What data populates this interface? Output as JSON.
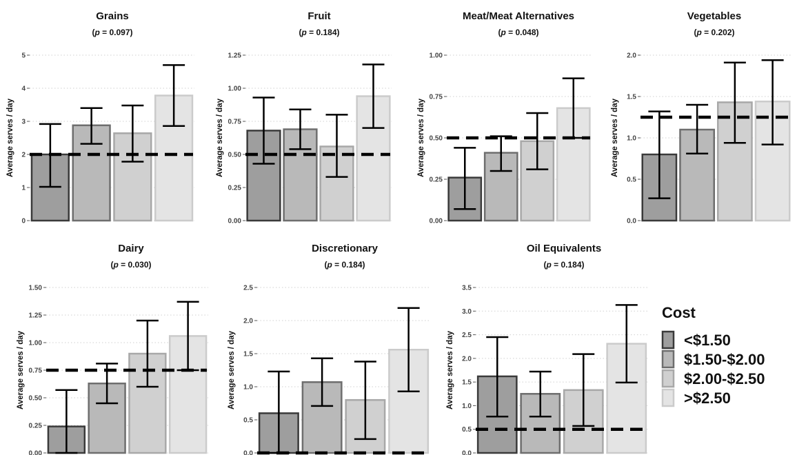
{
  "chart_data": {
    "type": "bar",
    "legend": {
      "title": "Cost",
      "placement": "right",
      "items": [
        {
          "label": "<$1.50",
          "color": "#9e9e9e",
          "stroke": "#3a3a3a"
        },
        {
          "label": "$1.50-$2.00",
          "color": "#b9b9b9",
          "stroke": "#6e6e6e"
        },
        {
          "label": "$2.00-$2.50",
          "color": "#d0d0d0",
          "stroke": "#a8a8a8"
        },
        {
          "label": ">$2.50",
          "color": "#e4e4e4",
          "stroke": "#cbcbcb"
        }
      ]
    },
    "grid": "horizontal dotted",
    "panels": [
      {
        "title": "Grains",
        "p_value": "0.097",
        "ylabel": "Average serves / day",
        "ylim": [
          0,
          5
        ],
        "ticks": [
          0,
          1,
          2,
          3,
          4,
          5
        ],
        "tick_labels": [
          "0",
          "1",
          "2",
          "3",
          "4",
          "5"
        ],
        "values": [
          2.0,
          2.88,
          2.64,
          3.78
        ],
        "err_low": [
          1.02,
          2.32,
          1.78,
          2.86
        ],
        "err_high": [
          2.92,
          3.4,
          3.48,
          4.7
        ],
        "reference": 2.0
      },
      {
        "title": "Fruit",
        "p_value": "0.184",
        "ylabel": "Average serves / day",
        "ylim": [
          0,
          1.25
        ],
        "ticks": [
          0,
          0.25,
          0.5,
          0.75,
          1.0,
          1.25
        ],
        "tick_labels": [
          "0.00",
          "0.25",
          "0.50",
          "0.75",
          "1.00",
          "1.25"
        ],
        "values": [
          0.68,
          0.69,
          0.56,
          0.94
        ],
        "err_low": [
          0.43,
          0.54,
          0.33,
          0.7
        ],
        "err_high": [
          0.93,
          0.84,
          0.8,
          1.18
        ],
        "reference": 0.5
      },
      {
        "title": "Meat/Meat Alternatives",
        "p_value": "0.048",
        "ylabel": "Average serves / day",
        "ylim": [
          0,
          1.0
        ],
        "ticks": [
          0,
          0.25,
          0.5,
          0.75,
          1.0
        ],
        "tick_labels": [
          "0.00",
          "0.25",
          "0.50",
          "0.75",
          "1.00"
        ],
        "values": [
          0.26,
          0.41,
          0.48,
          0.68
        ],
        "err_low": [
          0.07,
          0.3,
          0.31,
          0.5
        ],
        "err_high": [
          0.44,
          0.51,
          0.65,
          0.86
        ],
        "reference": 0.5
      },
      {
        "title": "Vegetables",
        "p_value": "0.202",
        "ylabel": "Average serves / day",
        "ylim": [
          0,
          2.0
        ],
        "ticks": [
          0,
          0.5,
          1.0,
          1.5,
          2.0
        ],
        "tick_labels": [
          "0.0",
          "0.5",
          "1.0",
          "1.5",
          "2.0"
        ],
        "values": [
          0.8,
          1.1,
          1.43,
          1.44
        ],
        "err_low": [
          0.27,
          0.81,
          0.94,
          0.92
        ],
        "err_high": [
          1.32,
          1.4,
          1.91,
          1.94
        ],
        "reference": 1.25
      },
      {
        "title": "Dairy",
        "p_value": "0.030",
        "ylabel": "Average serves / day",
        "ylim": [
          0,
          1.5
        ],
        "ticks": [
          0,
          0.25,
          0.5,
          0.75,
          1.0,
          1.25,
          1.5
        ],
        "tick_labels": [
          "0.00",
          "0.25",
          "0.50",
          "0.75",
          "1.00",
          "1.25",
          "1.50"
        ],
        "values": [
          0.24,
          0.63,
          0.9,
          1.06
        ],
        "err_low": [
          0.0,
          0.45,
          0.6,
          0.75
        ],
        "err_high": [
          0.57,
          0.81,
          1.2,
          1.37
        ],
        "reference": 0.75
      },
      {
        "title": "Discretionary",
        "p_value": "0.184",
        "ylabel": "Average serves / day",
        "ylim": [
          0,
          2.5
        ],
        "ticks": [
          0,
          0.5,
          1.0,
          1.5,
          2.0,
          2.5
        ],
        "tick_labels": [
          "0.0",
          "0.5",
          "1.0",
          "1.5",
          "2.0",
          "2.5"
        ],
        "values": [
          0.6,
          1.07,
          0.8,
          1.56
        ],
        "err_low": [
          0.0,
          0.71,
          0.21,
          0.93
        ],
        "err_high": [
          1.23,
          1.43,
          1.38,
          2.19
        ],
        "reference": 0.0
      },
      {
        "title": "Oil Equivalents",
        "p_value": "0.184",
        "ylabel": "Average serves / day",
        "ylim": [
          0,
          3.5
        ],
        "ticks": [
          0,
          0.5,
          1.0,
          1.5,
          2.0,
          2.5,
          3.0,
          3.5
        ],
        "tick_labels": [
          "0.0",
          "0.5",
          "1.0",
          "1.5",
          "2.0",
          "2.5",
          "3.0",
          "3.5"
        ],
        "values": [
          1.62,
          1.25,
          1.33,
          2.31
        ],
        "err_low": [
          0.77,
          0.77,
          0.57,
          1.49
        ],
        "err_high": [
          2.45,
          1.72,
          2.09,
          3.13
        ],
        "reference": 0.5
      }
    ]
  }
}
